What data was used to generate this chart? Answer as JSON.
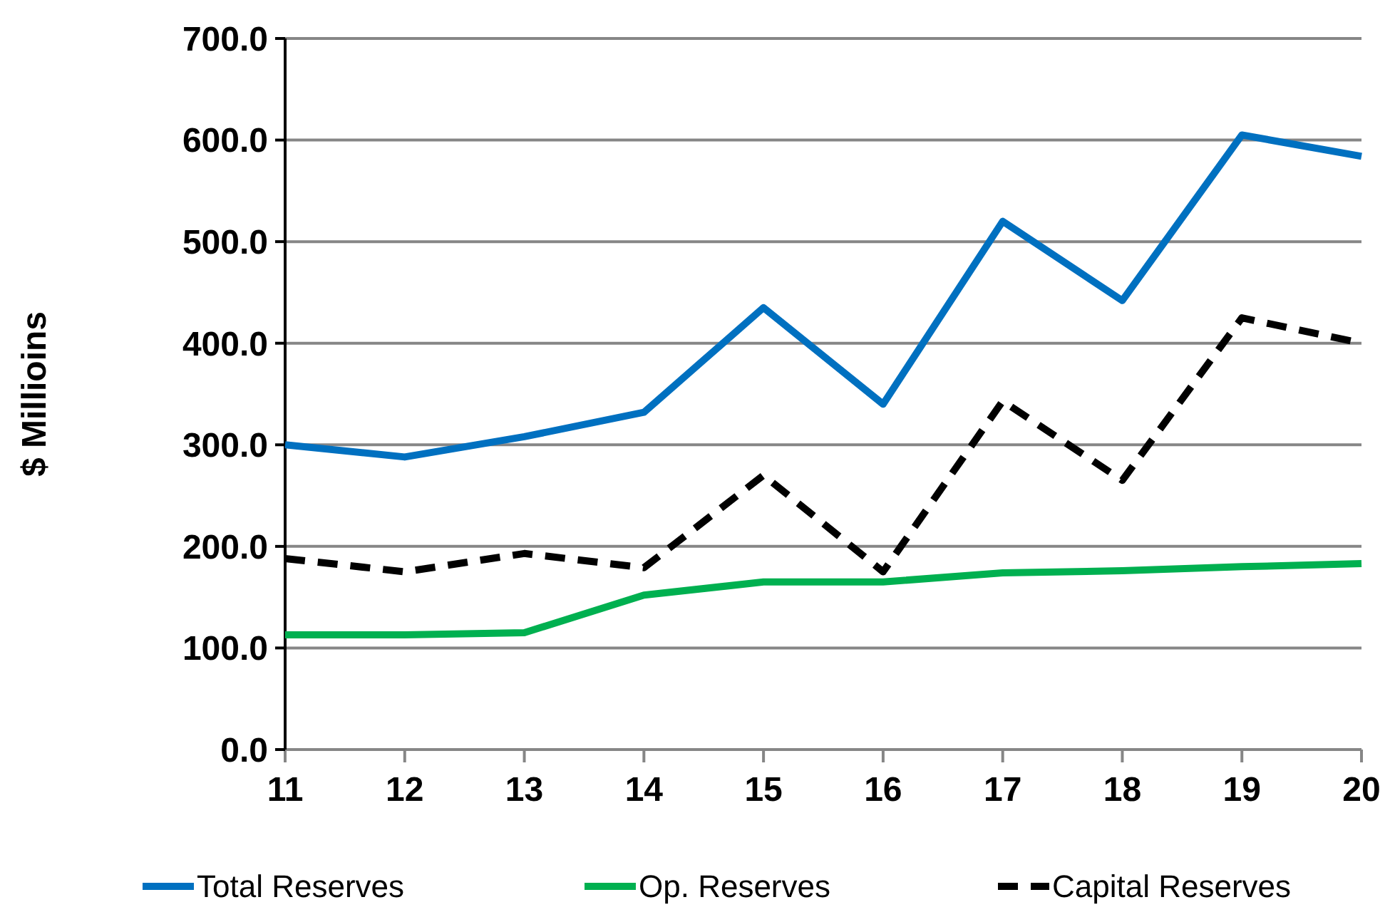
{
  "chart_data": {
    "type": "line",
    "ylabel": "$ Millioins",
    "categories": [
      "11",
      "12",
      "13",
      "14",
      "15",
      "16",
      "17",
      "18",
      "19",
      "20"
    ],
    "series": [
      {
        "name": "Total Reserves",
        "color": "#0070c0",
        "values": [
          300,
          288,
          308,
          332,
          435,
          340,
          520,
          442,
          605,
          584
        ]
      },
      {
        "name": "Op. Reserves",
        "color": "#00b050",
        "values": [
          113,
          113,
          115,
          152,
          165,
          165,
          174,
          176,
          180,
          183
        ]
      },
      {
        "name": "Capital Reserves",
        "color": "#000000",
        "values": [
          188,
          175,
          193,
          179,
          270,
          175,
          343,
          265,
          425,
          400
        ],
        "line_style": "dashed"
      }
    ],
    "ylim": [
      0,
      700
    ],
    "yticks": [
      {
        "value": 0,
        "label": "0.0"
      },
      {
        "value": 100,
        "label": "100.0"
      },
      {
        "value": 200,
        "label": "200.0"
      },
      {
        "value": 300,
        "label": "300.0"
      },
      {
        "value": 400,
        "label": "400.0"
      },
      {
        "value": 500,
        "label": "500.0"
      },
      {
        "value": 600,
        "label": "600.0"
      },
      {
        "value": 700,
        "label": "700.0"
      }
    ],
    "grid": "y",
    "legend": "bottom",
    "marker": "none",
    "line_style": "solid"
  }
}
